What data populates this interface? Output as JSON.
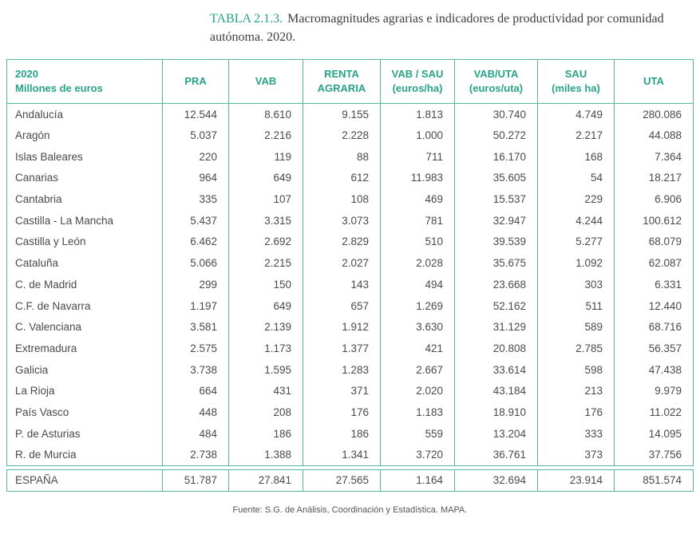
{
  "title": {
    "label": "TABLA 2.1.3.",
    "text": "Macromagnitudes agrarias e indicadores de productividad por comunidad autónoma. 2020."
  },
  "colors": {
    "accent_teal": "#27a287",
    "border_teal": "#55b79d",
    "body_text": "#4a4a4a"
  },
  "table": {
    "columns": [
      {
        "line1": "2020",
        "line2": "Millones de euros"
      },
      {
        "line1": "PRA",
        "line2": ""
      },
      {
        "line1": "VAB",
        "line2": ""
      },
      {
        "line1": "RENTA",
        "line2": "AGRARIA"
      },
      {
        "line1": "VAB / SAU",
        "line2": "(euros/ha)"
      },
      {
        "line1": "VAB/UTA",
        "line2": "(euros/uta)"
      },
      {
        "line1": "SAU",
        "line2": "(miles ha)"
      },
      {
        "line1": "UTA",
        "line2": ""
      }
    ],
    "rows": [
      {
        "region": "Andalucía",
        "values": [
          "12.544",
          "8.610",
          "9.155",
          "1.813",
          "30.740",
          "4.749",
          "280.086"
        ]
      },
      {
        "region": "Aragón",
        "values": [
          "5.037",
          "2.216",
          "2.228",
          "1.000",
          "50.272",
          "2.217",
          "44.088"
        ]
      },
      {
        "region": "Islas Baleares",
        "values": [
          "220",
          "119",
          "88",
          "711",
          "16.170",
          "168",
          "7.364"
        ]
      },
      {
        "region": "Canarias",
        "values": [
          "964",
          "649",
          "612",
          "11.983",
          "35.605",
          "54",
          "18.217"
        ]
      },
      {
        "region": "Cantabria",
        "values": [
          "335",
          "107",
          "108",
          "469",
          "15.537",
          "229",
          "6.906"
        ]
      },
      {
        "region": "Castilla - La Mancha",
        "values": [
          "5.437",
          "3.315",
          "3.073",
          "781",
          "32.947",
          "4.244",
          "100.612"
        ]
      },
      {
        "region": "Castilla y León",
        "values": [
          "6.462",
          "2.692",
          "2.829",
          "510",
          "39.539",
          "5.277",
          "68.079"
        ]
      },
      {
        "region": "Cataluña",
        "values": [
          "5.066",
          "2.215",
          "2.027",
          "2.028",
          "35.675",
          "1.092",
          "62.087"
        ]
      },
      {
        "region": "C. de Madrid",
        "values": [
          "299",
          "150",
          "143",
          "494",
          "23.668",
          "303",
          "6.331"
        ]
      },
      {
        "region": "C.F. de Navarra",
        "values": [
          "1.197",
          "649",
          "657",
          "1.269",
          "52.162",
          "511",
          "12.440"
        ]
      },
      {
        "region": "C. Valenciana",
        "values": [
          "3.581",
          "2.139",
          "1.912",
          "3.630",
          "31.129",
          "589",
          "68.716"
        ]
      },
      {
        "region": "Extremadura",
        "values": [
          "2.575",
          "1.173",
          "1.377",
          "421",
          "20.808",
          "2.785",
          "56.357"
        ]
      },
      {
        "region": "Galicia",
        "values": [
          "3.738",
          "1.595",
          "1.283",
          "2.667",
          "33.614",
          "598",
          "47.438"
        ]
      },
      {
        "region": "La Rioja",
        "values": [
          "664",
          "431",
          "371",
          "2.020",
          "43.184",
          "213",
          "9.979"
        ]
      },
      {
        "region": "País Vasco",
        "values": [
          "448",
          "208",
          "176",
          "1.183",
          "18.910",
          "176",
          "11.022"
        ]
      },
      {
        "region": "P. de Asturias",
        "values": [
          "484",
          "186",
          "186",
          "559",
          "13.204",
          "333",
          "14.095"
        ]
      },
      {
        "region": "R. de Murcia",
        "values": [
          "2.738",
          "1.388",
          "1.341",
          "3.720",
          "36.761",
          "373",
          "37.756"
        ]
      }
    ],
    "total": {
      "region": "ESPAÑA",
      "values": [
        "51.787",
        "27.841",
        "27.565",
        "1.164",
        "32.694",
        "23.914",
        "851.574"
      ]
    }
  },
  "footer": {
    "source": "Fuente: S.G. de Análisis, Coordinación y Estadística. MAPA."
  }
}
